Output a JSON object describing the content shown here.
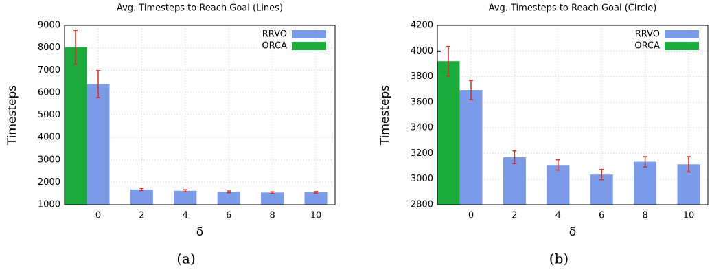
{
  "chart_data": [
    {
      "type": "bar",
      "title": "Avg. Timesteps to Reach Goal (Lines)",
      "x_label": "δ",
      "y_label": "Timesteps",
      "caption": "(a)",
      "categories": [
        "0",
        "2",
        "4",
        "6",
        "8",
        "10"
      ],
      "series": [
        {
          "name": "RRVO",
          "color": "#7b9ae8",
          "values": [
            6380,
            1680,
            1620,
            1570,
            1540,
            1550
          ],
          "errors": [
            600,
            50,
            45,
            40,
            35,
            35
          ]
        },
        {
          "name": "ORCA",
          "color": "#1aab3a",
          "values": [
            8030,
            null,
            null,
            null,
            null,
            null
          ],
          "errors": [
            750,
            null,
            null,
            null,
            null,
            null
          ]
        }
      ],
      "ylim": [
        1000,
        9000
      ],
      "yticks": [
        1000,
        2000,
        3000,
        4000,
        5000,
        6000,
        7000,
        8000,
        9000
      ],
      "grid": true,
      "legend": "top-right"
    },
    {
      "type": "bar",
      "title": "Avg. Timesteps to Reach Goal (Circle)",
      "x_label": "δ",
      "y_label": "Timesteps",
      "caption": "(b)",
      "categories": [
        "0",
        "2",
        "4",
        "6",
        "8",
        "10"
      ],
      "series": [
        {
          "name": "RRVO",
          "color": "#7b9ae8",
          "values": [
            3695,
            3170,
            3110,
            3035,
            3135,
            3115
          ],
          "errors": [
            75,
            50,
            40,
            40,
            40,
            60
          ]
        },
        {
          "name": "ORCA",
          "color": "#1aab3a",
          "values": [
            3920,
            null,
            null,
            null,
            null,
            null
          ],
          "errors": [
            115,
            null,
            null,
            null,
            null,
            null
          ]
        }
      ],
      "ylim": [
        2800,
        4200
      ],
      "yticks": [
        2800,
        3000,
        3200,
        3400,
        3600,
        3800,
        4000,
        4200
      ],
      "grid": true,
      "legend": "top-right"
    }
  ]
}
